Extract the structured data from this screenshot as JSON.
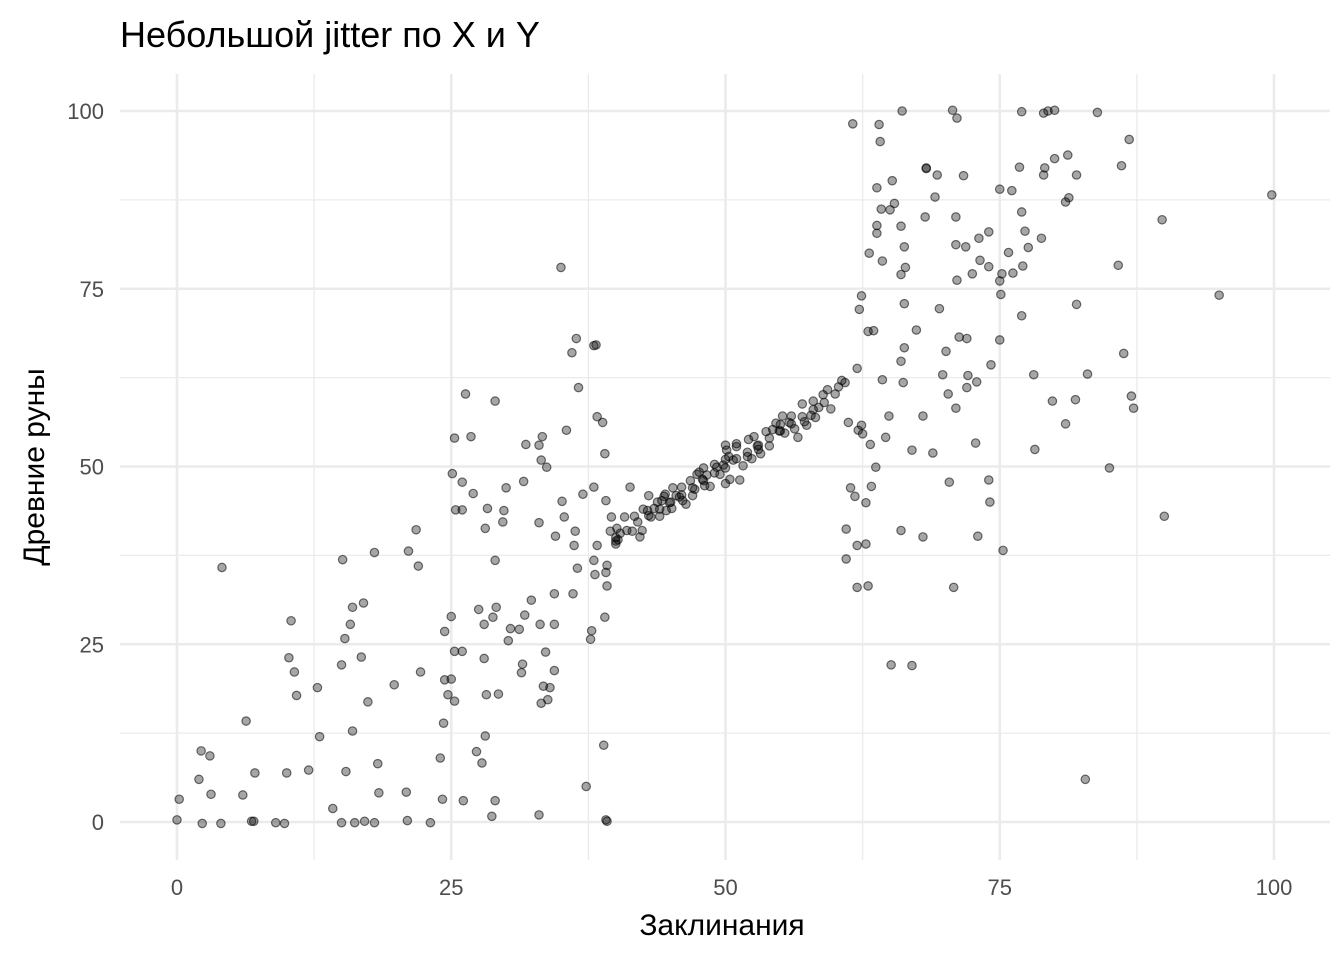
{
  "chart_data": {
    "type": "scatter",
    "title": "Небольшой jitter по X и Y",
    "xlabel": "Заклинания",
    "ylabel": "Древние руны",
    "xlim": [
      -5,
      102
    ],
    "ylim": [
      -6,
      106
    ],
    "x_ticks": [
      0,
      25,
      50,
      75,
      100
    ],
    "y_ticks": [
      0,
      25,
      50,
      75,
      100
    ],
    "x_tick_labels": [
      "0",
      "25",
      "50",
      "75",
      "100"
    ],
    "y_tick_labels": [
      "0",
      "25",
      "50",
      "75",
      "100"
    ],
    "grid": true,
    "legend": "none",
    "point_color": "#000000",
    "point_opacity": 0.35,
    "grid_color": "#ebebeb",
    "points": [
      [
        0,
        0.3
      ],
      [
        0.2,
        3.2
      ],
      [
        2,
        6
      ],
      [
        2.2,
        10
      ],
      [
        2.3,
        -0.2
      ],
      [
        3,
        9.3
      ],
      [
        3.1,
        3.9
      ],
      [
        4,
        -0.2
      ],
      [
        4.1,
        35.8
      ],
      [
        6,
        3.8
      ],
      [
        6.3,
        14.2
      ],
      [
        6.8,
        0.1
      ],
      [
        7,
        0.1
      ],
      [
        7.1,
        6.9
      ],
      [
        9,
        -0.1
      ],
      [
        9.8,
        -0.2
      ],
      [
        10,
        6.9
      ],
      [
        10.2,
        23.1
      ],
      [
        10.4,
        28.3
      ],
      [
        10.7,
        21.1
      ],
      [
        10.9,
        17.8
      ],
      [
        12,
        7.3
      ],
      [
        12.8,
        18.9
      ],
      [
        13,
        12
      ],
      [
        14.2,
        1.9
      ],
      [
        15,
        -0.1
      ],
      [
        15,
        22.1
      ],
      [
        15.1,
        36.9
      ],
      [
        15.3,
        25.8
      ],
      [
        15.4,
        7.1
      ],
      [
        15.8,
        27.8
      ],
      [
        16,
        30.2
      ],
      [
        16,
        12.8
      ],
      [
        16.2,
        -0.1
      ],
      [
        16.8,
        23.2
      ],
      [
        17.1,
        0.1
      ],
      [
        17,
        30.8
      ],
      [
        17.4,
        16.9
      ],
      [
        18,
        -0.1
      ],
      [
        18,
        37.9
      ],
      [
        18.3,
        8.2
      ],
      [
        18.4,
        4.1
      ],
      [
        19.8,
        19.3
      ],
      [
        20.9,
        4.2
      ],
      [
        21,
        0.2
      ],
      [
        21.1,
        38.1
      ],
      [
        21.8,
        41.1
      ],
      [
        22,
        36
      ],
      [
        22.2,
        21.1
      ],
      [
        23.1,
        -0.1
      ],
      [
        24,
        9
      ],
      [
        24.2,
        3.2
      ],
      [
        24.3,
        13.9
      ],
      [
        24.4,
        26.8
      ],
      [
        24.4,
        20
      ],
      [
        24.7,
        17.9
      ],
      [
        25,
        28.9
      ],
      [
        25,
        20.1
      ],
      [
        25.1,
        49
      ],
      [
        25.3,
        24
      ],
      [
        25.3,
        17
      ],
      [
        25.3,
        54
      ],
      [
        25.4,
        43.9
      ],
      [
        26,
        24
      ],
      [
        26,
        43.9
      ],
      [
        26,
        47.8
      ],
      [
        26.1,
        3
      ],
      [
        26.3,
        60.2
      ],
      [
        26.8,
        54.2
      ],
      [
        27,
        46.2
      ],
      [
        27.3,
        9.9
      ],
      [
        27.5,
        29.9
      ],
      [
        27.8,
        8.3
      ],
      [
        28,
        27.8
      ],
      [
        28,
        23
      ],
      [
        28.1,
        41.3
      ],
      [
        28.2,
        17.9
      ],
      [
        28.1,
        12.1
      ],
      [
        28.3,
        44.1
      ],
      [
        28.7,
        0.8
      ],
      [
        28.8,
        28.8
      ],
      [
        29,
        3
      ],
      [
        29,
        59.2
      ],
      [
        29,
        36.8
      ],
      [
        29.1,
        30.2
      ],
      [
        29.3,
        18
      ],
      [
        29.7,
        42.2
      ],
      [
        29.8,
        43.8
      ],
      [
        30,
        47
      ],
      [
        30.2,
        25.5
      ],
      [
        30.4,
        27.2
      ],
      [
        31.2,
        27.1
      ],
      [
        31.4,
        21
      ],
      [
        31.6,
        47.9
      ],
      [
        31.5,
        22.2
      ],
      [
        31.7,
        29.1
      ],
      [
        31.8,
        53.1
      ],
      [
        32.3,
        31.2
      ],
      [
        33,
        1
      ],
      [
        33,
        42.1
      ],
      [
        33.1,
        27.8
      ],
      [
        33,
        53
      ],
      [
        33.2,
        16.7
      ],
      [
        33.2,
        50.9
      ],
      [
        33.3,
        54.2
      ],
      [
        33.4,
        19.1
      ],
      [
        33.6,
        23.9
      ],
      [
        33.7,
        49.9
      ],
      [
        33.8,
        17.2
      ],
      [
        34,
        18.9
      ],
      [
        34.4,
        27.8
      ],
      [
        34.4,
        32.1
      ],
      [
        34.5,
        40.2
      ],
      [
        34.4,
        21.3
      ],
      [
        35,
        78
      ],
      [
        35.1,
        45.1
      ],
      [
        35.3,
        42.9
      ],
      [
        35.5,
        55.1
      ],
      [
        36,
        66
      ],
      [
        36.1,
        32.1
      ],
      [
        36.2,
        38.9
      ],
      [
        36.3,
        40.9
      ],
      [
        36.4,
        68
      ],
      [
        36.6,
        61.1
      ],
      [
        36.5,
        35.7
      ],
      [
        37,
        46.1
      ],
      [
        37.3,
        5
      ],
      [
        37.8,
        26.9
      ],
      [
        37.7,
        25.7
      ],
      [
        38,
        36.8
      ],
      [
        38,
        47.1
      ],
      [
        38,
        67
      ],
      [
        38.1,
        34.8
      ],
      [
        38.2,
        67.1
      ],
      [
        38.3,
        57
      ],
      [
        38.3,
        38.9
      ],
      [
        38.8,
        56.2
      ],
      [
        38.9,
        10.8
      ],
      [
        39,
        28.8
      ],
      [
        39.1,
        0.3
      ],
      [
        39,
        51.8
      ],
      [
        39.2,
        0.1
      ],
      [
        39.2,
        36.1
      ],
      [
        39.2,
        33.2
      ],
      [
        39.1,
        35.1
      ],
      [
        39.1,
        45.2
      ],
      [
        39.5,
        40.9
      ],
      [
        39.6,
        42.9
      ],
      [
        40,
        39.1
      ],
      [
        40,
        40
      ],
      [
        40,
        39.5
      ],
      [
        40.1,
        41.3
      ],
      [
        40.2,
        39.7
      ],
      [
        40.4,
        40.6
      ],
      [
        40.8,
        42.9
      ],
      [
        41,
        41
      ],
      [
        41.3,
        47.1
      ],
      [
        41.5,
        40.9
      ],
      [
        41.7,
        43
      ],
      [
        42,
        42.2
      ],
      [
        42.2,
        40.1
      ],
      [
        42.4,
        41
      ],
      [
        42.5,
        44
      ],
      [
        42.9,
        43.8
      ],
      [
        43,
        43.1
      ],
      [
        43,
        45.9
      ],
      [
        43.2,
        42.9
      ],
      [
        43.5,
        44.1
      ],
      [
        43.8,
        45
      ],
      [
        44,
        44
      ],
      [
        44,
        43
      ],
      [
        44.2,
        45.2
      ],
      [
        44.4,
        45.8
      ],
      [
        44.5,
        46.1
      ],
      [
        44.6,
        43.8
      ],
      [
        44.9,
        44.9
      ],
      [
        45,
        45
      ],
      [
        45.1,
        44.1
      ],
      [
        45.2,
        47
      ],
      [
        45.5,
        45.9
      ],
      [
        45.8,
        45.7
      ],
      [
        46,
        46
      ],
      [
        46,
        47.1
      ],
      [
        46.1,
        45.2
      ],
      [
        46.4,
        44.7
      ],
      [
        46.8,
        48
      ],
      [
        47,
        47
      ],
      [
        47,
        45.9
      ],
      [
        47.2,
        46.8
      ],
      [
        47.4,
        48.9
      ],
      [
        47.6,
        49.2
      ],
      [
        47.9,
        48.2
      ],
      [
        48,
        48
      ],
      [
        48,
        49.8
      ],
      [
        48.1,
        47.3
      ],
      [
        48.3,
        48.8
      ],
      [
        48.6,
        47.2
      ],
      [
        49,
        49.1
      ],
      [
        49,
        50.3
      ],
      [
        49.2,
        49.9
      ],
      [
        49.5,
        48.9
      ],
      [
        49.8,
        50.2
      ],
      [
        50,
        51
      ],
      [
        50,
        49.8
      ],
      [
        50,
        53
      ],
      [
        50,
        47.6
      ],
      [
        50.1,
        52.3
      ],
      [
        50.3,
        51.4
      ],
      [
        50.4,
        48.2
      ],
      [
        50.7,
        50.9
      ],
      [
        51,
        51.1
      ],
      [
        51,
        52.8
      ],
      [
        51,
        53.2
      ],
      [
        51.3,
        48.1
      ],
      [
        51.6,
        50.1
      ],
      [
        52,
        52
      ],
      [
        52,
        51.4
      ],
      [
        52.1,
        53.8
      ],
      [
        52.4,
        51.1
      ],
      [
        52.6,
        54.2
      ],
      [
        52.9,
        52.9
      ],
      [
        53,
        53
      ],
      [
        53,
        52.4
      ],
      [
        53.2,
        51.8
      ],
      [
        53.7,
        54.9
      ],
      [
        54,
        54
      ],
      [
        54,
        52.9
      ],
      [
        54.3,
        55.2
      ],
      [
        54.6,
        56.1
      ],
      [
        54.9,
        55
      ],
      [
        55,
        55
      ],
      [
        55,
        55.9
      ],
      [
        55.2,
        57.1
      ],
      [
        55.4,
        54.7
      ],
      [
        55.8,
        56.2
      ],
      [
        56,
        56
      ],
      [
        56,
        57.1
      ],
      [
        56.3,
        55.3
      ],
      [
        56.6,
        54.1
      ],
      [
        57,
        57
      ],
      [
        57,
        58.8
      ],
      [
        57.2,
        56.3
      ],
      [
        57.4,
        55.8
      ],
      [
        57.8,
        57.2
      ],
      [
        58,
        58
      ],
      [
        58,
        59.2
      ],
      [
        58.2,
        56.9
      ],
      [
        58.5,
        58.3
      ],
      [
        58.9,
        60.1
      ],
      [
        59,
        59
      ],
      [
        59.3,
        60.8
      ],
      [
        59.6,
        58.1
      ],
      [
        60,
        60.2
      ],
      [
        60.3,
        61.2
      ],
      [
        60.6,
        62.1
      ],
      [
        60.9,
        61.8
      ],
      [
        61,
        37
      ],
      [
        61,
        41.2
      ],
      [
        61.2,
        56.2
      ],
      [
        61.4,
        47
      ],
      [
        61.6,
        98.2
      ],
      [
        61.8,
        45.8
      ],
      [
        62,
        63.8
      ],
      [
        62,
        33
      ],
      [
        62,
        38.9
      ],
      [
        62.1,
        55.1
      ],
      [
        62.2,
        72.1
      ],
      [
        62.4,
        74
      ],
      [
        62.4,
        55.8
      ],
      [
        62.5,
        54.6
      ],
      [
        62.8,
        39.1
      ],
      [
        62.8,
        44.9
      ],
      [
        63,
        33.2
      ],
      [
        63,
        69
      ],
      [
        63.1,
        80
      ],
      [
        63.2,
        53.1
      ],
      [
        63.3,
        47.2
      ],
      [
        63.5,
        69.1
      ],
      [
        63.7,
        49.9
      ],
      [
        63.8,
        89.2
      ],
      [
        63.8,
        82.8
      ],
      [
        63.8,
        83.9
      ],
      [
        64,
        98.1
      ],
      [
        64.1,
        95.7
      ],
      [
        64.2,
        86.2
      ],
      [
        64.3,
        62.2
      ],
      [
        64.3,
        78.9
      ],
      [
        64.6,
        54.1
      ],
      [
        64.9,
        57.1
      ],
      [
        65,
        86.1
      ],
      [
        65.1,
        22.1
      ],
      [
        65.2,
        90.2
      ],
      [
        65.4,
        87
      ],
      [
        66,
        77
      ],
      [
        66,
        83.8
      ],
      [
        66,
        64.8
      ],
      [
        66,
        41
      ],
      [
        66.1,
        100
      ],
      [
        66.2,
        61.8
      ],
      [
        66.3,
        72.9
      ],
      [
        66.3,
        80.9
      ],
      [
        66.3,
        66.7
      ],
      [
        66.4,
        78
      ],
      [
        67,
        52.3
      ],
      [
        67,
        22
      ],
      [
        67.4,
        69.2
      ],
      [
        68,
        57.1
      ],
      [
        68,
        40.1
      ],
      [
        68.2,
        85.1
      ],
      [
        68.3,
        92
      ],
      [
        68.3,
        91.9
      ],
      [
        68.9,
        51.9
      ],
      [
        69.1,
        87.9
      ],
      [
        69.3,
        91
      ],
      [
        69.5,
        72.2
      ],
      [
        69.8,
        62.9
      ],
      [
        70.1,
        66.2
      ],
      [
        70.3,
        60.2
      ],
      [
        70.4,
        47.8
      ],
      [
        70.7,
        100.1
      ],
      [
        70.8,
        33
      ],
      [
        71,
        85.1
      ],
      [
        71,
        81.2
      ],
      [
        71.1,
        99
      ],
      [
        71,
        58.2
      ],
      [
        71.1,
        76.2
      ],
      [
        71.3,
        68.2
      ],
      [
        71.7,
        90.9
      ],
      [
        71.9,
        80.9
      ],
      [
        72,
        61.1
      ],
      [
        72,
        68
      ],
      [
        72.1,
        62.8
      ],
      [
        72.5,
        77.1
      ],
      [
        72.8,
        53.3
      ],
      [
        72.9,
        61.9
      ],
      [
        73.1,
        82.1
      ],
      [
        73,
        40.2
      ],
      [
        73.2,
        79
      ],
      [
        74,
        78.1
      ],
      [
        74,
        83
      ],
      [
        74,
        48.1
      ],
      [
        74.1,
        45
      ],
      [
        74.2,
        64.3
      ],
      [
        75,
        76.1
      ],
      [
        75,
        89
      ],
      [
        75,
        67.8
      ],
      [
        75.1,
        74.2
      ],
      [
        75.2,
        77.1
      ],
      [
        75.3,
        38.2
      ],
      [
        75.8,
        80.1
      ],
      [
        76.1,
        88.8
      ],
      [
        76.2,
        77.2
      ],
      [
        76.8,
        92.1
      ],
      [
        77,
        85.8
      ],
      [
        77,
        71.2
      ],
      [
        77.1,
        78.2
      ],
      [
        77.3,
        83.1
      ],
      [
        77,
        99.9
      ],
      [
        77.6,
        80.8
      ],
      [
        78.1,
        62.9
      ],
      [
        78.2,
        52.4
      ],
      [
        78.8,
        82.1
      ],
      [
        79,
        99.7
      ],
      [
        79,
        91
      ],
      [
        79.1,
        92
      ],
      [
        79.4,
        100
      ],
      [
        79.8,
        59.2
      ],
      [
        80,
        100.1
      ],
      [
        80,
        93.3
      ],
      [
        81,
        87.2
      ],
      [
        81,
        56
      ],
      [
        81.2,
        93.8
      ],
      [
        81.3,
        87.8
      ],
      [
        81.9,
        59.4
      ],
      [
        82,
        91
      ],
      [
        82,
        72.8
      ],
      [
        82.8,
        6
      ],
      [
        83,
        63
      ],
      [
        83.9,
        99.8
      ],
      [
        85,
        49.8
      ],
      [
        85.8,
        78.3
      ],
      [
        86.1,
        92.3
      ],
      [
        86.3,
        65.9
      ],
      [
        86.8,
        96
      ],
      [
        87,
        59.9
      ],
      [
        87.2,
        58.2
      ],
      [
        89.8,
        84.7
      ],
      [
        90,
        43
      ],
      [
        95,
        74.1
      ],
      [
        99.8,
        88.2
      ]
    ]
  }
}
